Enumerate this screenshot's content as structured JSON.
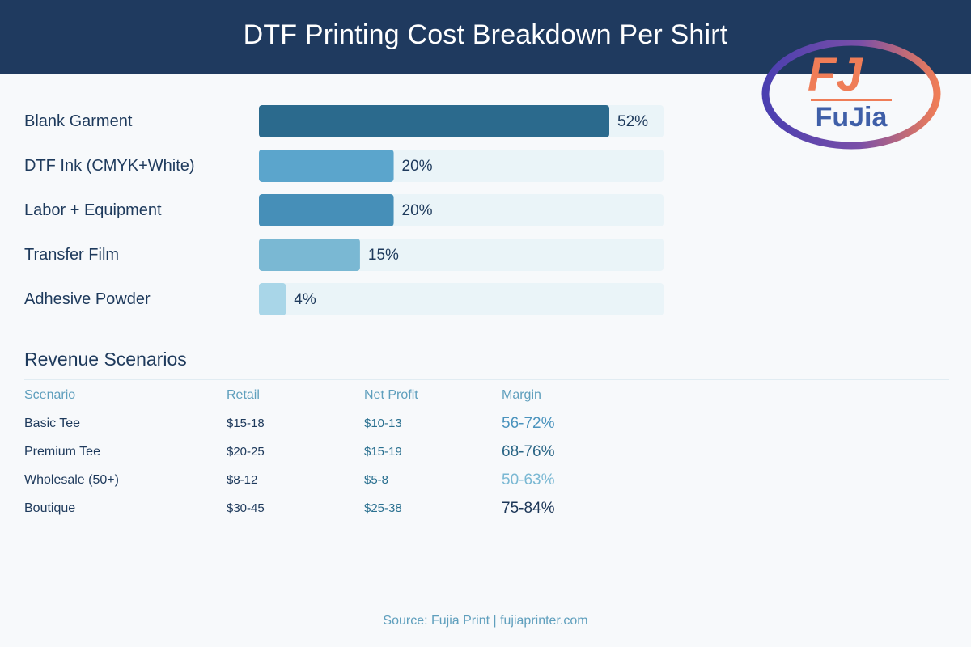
{
  "title": "DTF Printing Cost Breakdown Per Shirt",
  "logo": {
    "text": "FuJia",
    "monogram": "FJ",
    "ring_color": "#4a3fb0",
    "accent_color": "#ef7d57"
  },
  "chart_data": {
    "type": "bar",
    "orientation": "horizontal",
    "categories": [
      "Blank Garment",
      "DTF Ink (CMYK+White)",
      "Labor + Equipment",
      "Transfer Film",
      "Adhesive Powder"
    ],
    "values": [
      52,
      20,
      20,
      15,
      4
    ],
    "value_labels": [
      "52%",
      "20%",
      "20%",
      "15%",
      "4%"
    ],
    "colors": [
      "#2b6a8d",
      "#5ba5cc",
      "#468fb8",
      "#7ab8d3",
      "#a9d6e8"
    ],
    "track_color": "#eaf4f8",
    "xlim": [
      0,
      100
    ]
  },
  "revenue": {
    "title": "Revenue Scenarios",
    "headers": [
      "Scenario",
      "Retail",
      "Net Profit",
      "Margin"
    ],
    "rows": [
      {
        "scenario": "Basic Tee",
        "retail": "$15-18",
        "profit": "$10-13",
        "margin": "56-72%",
        "margin_color": "#4a93bd"
      },
      {
        "scenario": "Premium Tee",
        "retail": "$20-25",
        "profit": "$15-19",
        "margin": "68-76%",
        "margin_color": "#2a6585"
      },
      {
        "scenario": "Wholesale (50+)",
        "retail": "$8-12",
        "profit": "$5-8",
        "margin": "50-63%",
        "margin_color": "#7ab8d3"
      },
      {
        "scenario": "Boutique",
        "retail": "$30-45",
        "profit": "$25-38",
        "margin": "75-84%",
        "margin_color": "#1c3657"
      }
    ]
  },
  "footer": "Source: Fujia Print | fujiaprinter.com"
}
